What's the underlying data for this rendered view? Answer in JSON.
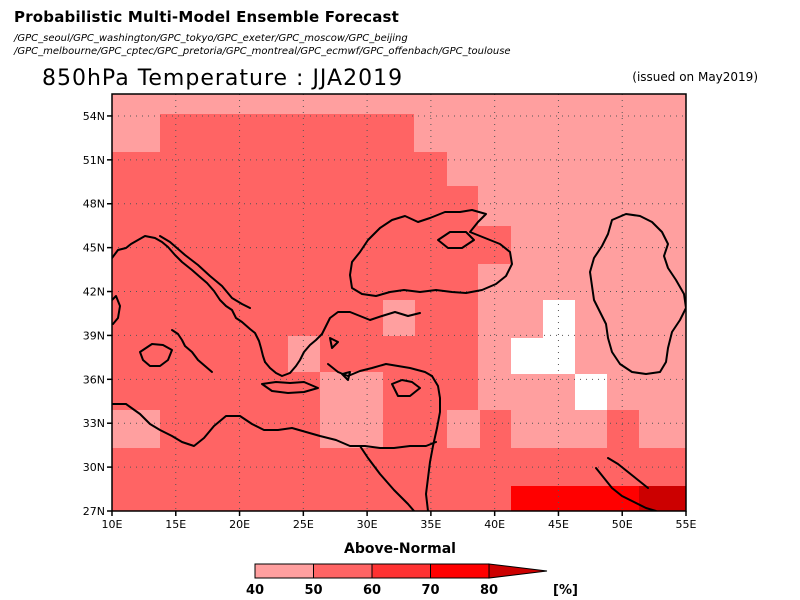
{
  "header": {
    "title": "Probabilistic Multi-Model Ensemble Forecast",
    "centers_line1": "/GPC_seoul/GPC_washington/GPC_tokyo/GPC_exeter/GPC_moscow/GPC_beijing",
    "centers_line2": "/GPC_melbourne/GPC_cptec/GPC_pretoria/GPC_montreal/GPC_ecmwf/GPC_offenbach/GPC_toulouse"
  },
  "map": {
    "title": "850hPa Temperature : JJA2019",
    "issued": "(issued on May2019)",
    "lon_range": [
      10,
      55
    ],
    "lat_range": [
      27,
      55.5
    ],
    "x_tick_labels": [
      "10E",
      "15E",
      "20E",
      "25E",
      "30E",
      "35E",
      "40E",
      "45E",
      "50E",
      "55E"
    ],
    "y_tick_labels": [
      "27N",
      "30N",
      "33N",
      "36N",
      "39N",
      "42N",
      "45N",
      "48N",
      "51N",
      "54N"
    ],
    "gridlines": true
  },
  "legend": {
    "title": "Above-Normal",
    "tick_labels": [
      "40",
      "50",
      "60",
      "70",
      "80"
    ],
    "unit": "[%]",
    "colors": [
      "#ff9f9f",
      "#ff6464",
      "#ff3232",
      "#ff0000",
      "#cc0000"
    ]
  },
  "colors": {
    "c40": "#ff9f9f",
    "c50": "#ff6464",
    "c70": "#ff0000",
    "c80": "#cc0000",
    "none": "#ffffff"
  }
}
